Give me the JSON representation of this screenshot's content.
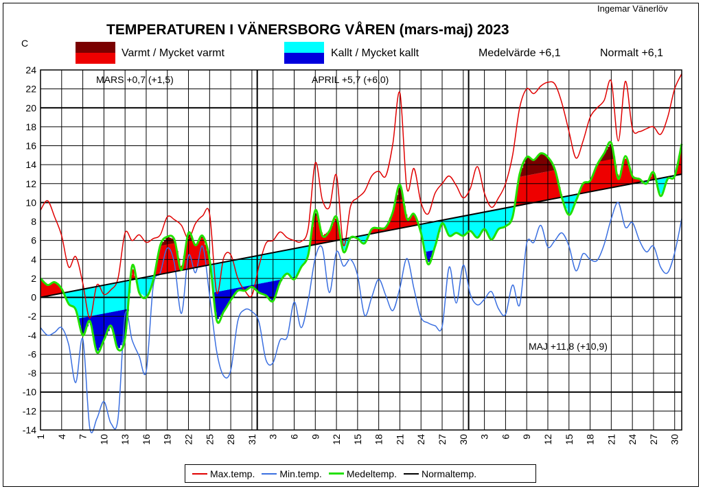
{
  "author": "Ingemar Vänerlöv",
  "title": "TEMPERATUREN I VÄNERSBORG  VÅREN (mars-maj) 2023",
  "unit": "C",
  "key": {
    "warm": "Varmt / Mycket varmt",
    "cold": "Kallt / Mycket kallt",
    "mean": "Medelvärde +6,1",
    "normal": "Normalt +6,1"
  },
  "month_notes": {
    "mars": "MARS  +0,7  (+1,5)",
    "april": "APRIL +5,7  (+6,0)",
    "maj": "MAJ +11,8  (+10,9)"
  },
  "legend": [
    {
      "label": "Max.temp.",
      "color": "#e00000"
    },
    {
      "label": "Min.temp.",
      "color": "#3a6fe0"
    },
    {
      "label": "Medeltemp.",
      "color": "#22e000"
    },
    {
      "label": "Normaltemp.",
      "color": "#000000"
    }
  ],
  "colors": {
    "warm": "#ee0000",
    "very_warm": "#7a0000",
    "cold": "#00ffff",
    "very_cold": "#0000dd",
    "max": "#e00000",
    "min": "#3a6fe0",
    "mean": "#22e000",
    "normal": "#000000"
  },
  "chart_data": {
    "type": "line",
    "ylim": [
      -14,
      24
    ],
    "yticks": [
      -14,
      -12,
      -10,
      -8,
      -6,
      -4,
      -2,
      0,
      2,
      4,
      6,
      8,
      10,
      12,
      14,
      16,
      18,
      20,
      22,
      24
    ],
    "xtick_labels": [
      "1",
      "4",
      "7",
      "10",
      "13",
      "16",
      "19",
      "22",
      "25",
      "28",
      "31",
      "3",
      "6",
      "9",
      "12",
      "15",
      "18",
      "21",
      "24",
      "27",
      "30",
      "3",
      "6",
      "9",
      "12",
      "15",
      "18",
      "21",
      "24",
      "27",
      "30"
    ],
    "month_starts": [
      1,
      32,
      62
    ],
    "days": 92,
    "normal": {
      "start": 0.0,
      "end": 13.0
    },
    "max_anchors": [
      [
        1,
        9.2
      ],
      [
        2,
        10.2
      ],
      [
        3,
        8.5
      ],
      [
        4,
        6.5
      ],
      [
        5,
        3.2
      ],
      [
        6,
        4.3
      ],
      [
        7,
        1.5
      ],
      [
        8,
        -2.2
      ],
      [
        9,
        1.3
      ],
      [
        10,
        0.3
      ],
      [
        11,
        0.8
      ],
      [
        12,
        2.0
      ],
      [
        13,
        6.8
      ],
      [
        14,
        6.0
      ],
      [
        15,
        6.6
      ],
      [
        16,
        5.8
      ],
      [
        17,
        6.2
      ],
      [
        18,
        6.6
      ],
      [
        19,
        8.5
      ],
      [
        20,
        8.2
      ],
      [
        21,
        7.6
      ],
      [
        22,
        6.2
      ],
      [
        23,
        7.8
      ],
      [
        24,
        8.6
      ],
      [
        25,
        8.8
      ],
      [
        26,
        0.5
      ],
      [
        27,
        4.2
      ],
      [
        28,
        4.5
      ],
      [
        29,
        2.0
      ],
      [
        30,
        0.7
      ],
      [
        31,
        0.2
      ],
      [
        32,
        3.3
      ],
      [
        33,
        5.7
      ],
      [
        34,
        6.0
      ],
      [
        35,
        6.9
      ],
      [
        36,
        6.3
      ],
      [
        37,
        6.0
      ],
      [
        38,
        5.9
      ],
      [
        39,
        7.3
      ],
      [
        40,
        14.2
      ],
      [
        41,
        10.3
      ],
      [
        42,
        9.5
      ],
      [
        43,
        12.9
      ],
      [
        44,
        5.5
      ],
      [
        45,
        9.6
      ],
      [
        46,
        10.5
      ],
      [
        47,
        11.2
      ],
      [
        48,
        12.8
      ],
      [
        49,
        13.3
      ],
      [
        50,
        12.8
      ],
      [
        51,
        16.2
      ],
      [
        52,
        21.6
      ],
      [
        53,
        11.5
      ],
      [
        54,
        13.6
      ],
      [
        55,
        10.0
      ],
      [
        56,
        8.8
      ],
      [
        57,
        11.0
      ],
      [
        58,
        12.0
      ],
      [
        59,
        12.8
      ],
      [
        60,
        11.8
      ],
      [
        61,
        10.5
      ],
      [
        62,
        11.5
      ],
      [
        63,
        13.8
      ],
      [
        64,
        11.0
      ],
      [
        65,
        9.5
      ],
      [
        66,
        10.5
      ],
      [
        67,
        12.0
      ],
      [
        68,
        15.0
      ],
      [
        69,
        20.0
      ],
      [
        70,
        22.0
      ],
      [
        71,
        21.5
      ],
      [
        72,
        22.3
      ],
      [
        73,
        22.7
      ],
      [
        74,
        22.5
      ],
      [
        75,
        20.5
      ],
      [
        76,
        17.5
      ],
      [
        77,
        14.7
      ],
      [
        78,
        16.5
      ],
      [
        79,
        19.0
      ],
      [
        80,
        20.0
      ],
      [
        81,
        20.8
      ],
      [
        82,
        22.8
      ],
      [
        83,
        16.5
      ],
      [
        84,
        22.8
      ],
      [
        85,
        17.8
      ],
      [
        86,
        17.5
      ],
      [
        87,
        17.8
      ],
      [
        88,
        18.0
      ],
      [
        89,
        17.2
      ],
      [
        90,
        19.0
      ],
      [
        91,
        22.0
      ],
      [
        92,
        23.6
      ]
    ],
    "min_anchors": [
      [
        1,
        -3.2
      ],
      [
        2,
        -4.0
      ],
      [
        3,
        -3.7
      ],
      [
        4,
        -3.2
      ],
      [
        5,
        -5.0
      ],
      [
        6,
        -9.0
      ],
      [
        7,
        -4.4
      ],
      [
        8,
        -13.8
      ],
      [
        9,
        -12.8
      ],
      [
        10,
        -11.0
      ],
      [
        11,
        -13.3
      ],
      [
        12,
        -12.8
      ],
      [
        13,
        -1.8
      ],
      [
        14,
        -4.5
      ],
      [
        15,
        -6.2
      ],
      [
        16,
        -7.8
      ],
      [
        17,
        1.2
      ],
      [
        18,
        2.6
      ],
      [
        19,
        5.2
      ],
      [
        20,
        3.6
      ],
      [
        21,
        -1.7
      ],
      [
        22,
        4.4
      ],
      [
        23,
        2.6
      ],
      [
        24,
        5.4
      ],
      [
        25,
        0.2
      ],
      [
        26,
        -5.7
      ],
      [
        27,
        -8.3
      ],
      [
        28,
        -7.7
      ],
      [
        29,
        -2.5
      ],
      [
        30,
        -1.3
      ],
      [
        31,
        -1.5
      ],
      [
        32,
        -2.6
      ],
      [
        33,
        -6.6
      ],
      [
        34,
        -6.9
      ],
      [
        35,
        -4.5
      ],
      [
        36,
        -4.2
      ],
      [
        37,
        -0.5
      ],
      [
        38,
        -3.2
      ],
      [
        39,
        -0.3
      ],
      [
        40,
        4.2
      ],
      [
        41,
        5.2
      ],
      [
        42,
        0.5
      ],
      [
        43,
        4.8
      ],
      [
        44,
        3.3
      ],
      [
        45,
        4.0
      ],
      [
        46,
        2.3
      ],
      [
        47,
        -1.9
      ],
      [
        48,
        0.0
      ],
      [
        49,
        1.9
      ],
      [
        50,
        0.2
      ],
      [
        51,
        -1.4
      ],
      [
        52,
        1.0
      ],
      [
        53,
        4.1
      ],
      [
        54,
        0.9
      ],
      [
        55,
        -2.1
      ],
      [
        56,
        -2.7
      ],
      [
        57,
        -3.0
      ],
      [
        58,
        -3.1
      ],
      [
        59,
        3.2
      ],
      [
        60,
        -0.6
      ],
      [
        61,
        3.4
      ],
      [
        62,
        0.3
      ],
      [
        63,
        -0.8
      ],
      [
        64,
        -0.2
      ],
      [
        65,
        0.6
      ],
      [
        66,
        -1.2
      ],
      [
        67,
        -1.8
      ],
      [
        68,
        1.3
      ],
      [
        69,
        -0.8
      ],
      [
        70,
        5.7
      ],
      [
        71,
        5.8
      ],
      [
        72,
        7.6
      ],
      [
        73,
        5.3
      ],
      [
        74,
        6.0
      ],
      [
        75,
        6.8
      ],
      [
        76,
        5.4
      ],
      [
        77,
        2.8
      ],
      [
        78,
        4.6
      ],
      [
        79,
        4.0
      ],
      [
        80,
        3.9
      ],
      [
        81,
        5.6
      ],
      [
        82,
        8.3
      ],
      [
        83,
        10.0
      ],
      [
        84,
        7.4
      ],
      [
        85,
        7.9
      ],
      [
        86,
        6.0
      ],
      [
        87,
        4.8
      ],
      [
        88,
        5.4
      ],
      [
        89,
        3.2
      ],
      [
        90,
        2.6
      ],
      [
        91,
        4.7
      ],
      [
        92,
        8.3
      ]
    ],
    "mean_anchors": [
      [
        1,
        2.0
      ],
      [
        2,
        1.3
      ],
      [
        3,
        1.6
      ],
      [
        4,
        0.9
      ],
      [
        5,
        -0.7
      ],
      [
        6,
        -1.3
      ],
      [
        7,
        -4.0
      ],
      [
        8,
        -2.5
      ],
      [
        9,
        -5.8
      ],
      [
        10,
        -4.5
      ],
      [
        11,
        -3.0
      ],
      [
        12,
        -5.5
      ],
      [
        13,
        -4.3
      ],
      [
        14,
        3.3
      ],
      [
        15,
        0.5
      ],
      [
        16,
        0.0
      ],
      [
        17,
        1.8
      ],
      [
        18,
        5.5
      ],
      [
        19,
        6.4
      ],
      [
        20,
        6.1
      ],
      [
        21,
        2.9
      ],
      [
        22,
        6.8
      ],
      [
        23,
        5.5
      ],
      [
        24,
        6.5
      ],
      [
        25,
        4.0
      ],
      [
        26,
        -2.4
      ],
      [
        27,
        -1.5
      ],
      [
        28,
        -0.3
      ],
      [
        29,
        0.7
      ],
      [
        30,
        0.7
      ],
      [
        31,
        1.1
      ],
      [
        32,
        0.5
      ],
      [
        33,
        0.2
      ],
      [
        34,
        -0.4
      ],
      [
        35,
        1.6
      ],
      [
        36,
        2.5
      ],
      [
        37,
        1.9
      ],
      [
        38,
        3.2
      ],
      [
        39,
        4.5
      ],
      [
        40,
        9.2
      ],
      [
        41,
        6.5
      ],
      [
        42,
        7.0
      ],
      [
        43,
        8.5
      ],
      [
        44,
        4.8
      ],
      [
        45,
        6.3
      ],
      [
        46,
        6.2
      ],
      [
        47,
        5.7
      ],
      [
        48,
        7.2
      ],
      [
        49,
        7.3
      ],
      [
        50,
        7.4
      ],
      [
        51,
        9.0
      ],
      [
        52,
        11.9
      ],
      [
        53,
        8.3
      ],
      [
        54,
        8.8
      ],
      [
        55,
        6.8
      ],
      [
        56,
        3.5
      ],
      [
        57,
        5.4
      ],
      [
        58,
        7.8
      ],
      [
        59,
        6.5
      ],
      [
        60,
        6.8
      ],
      [
        61,
        6.5
      ],
      [
        62,
        7.0
      ],
      [
        63,
        6.3
      ],
      [
        64,
        7.2
      ],
      [
        65,
        6.1
      ],
      [
        66,
        7.2
      ],
      [
        67,
        7.5
      ],
      [
        68,
        8.5
      ],
      [
        69,
        13.0
      ],
      [
        70,
        14.8
      ],
      [
        71,
        14.5
      ],
      [
        72,
        15.2
      ],
      [
        73,
        14.8
      ],
      [
        74,
        13.5
      ],
      [
        75,
        10.5
      ],
      [
        76,
        8.7
      ],
      [
        77,
        10.2
      ],
      [
        78,
        12.0
      ],
      [
        79,
        12.3
      ],
      [
        80,
        14.0
      ],
      [
        81,
        15.2
      ],
      [
        82,
        16.3
      ],
      [
        83,
        12.5
      ],
      [
        84,
        14.9
      ],
      [
        85,
        12.8
      ],
      [
        86,
        12.5
      ],
      [
        87,
        12.0
      ],
      [
        88,
        13.2
      ],
      [
        89,
        10.7
      ],
      [
        90,
        12.5
      ],
      [
        91,
        12.8
      ],
      [
        92,
        16.2
      ]
    ]
  }
}
